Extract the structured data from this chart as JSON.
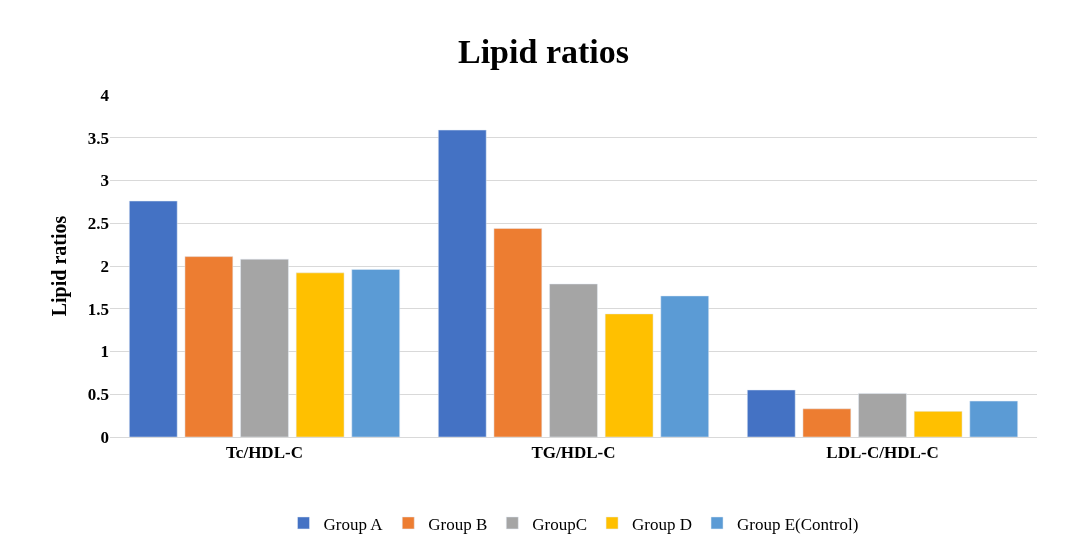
{
  "chart_data": {
    "type": "bar",
    "title": "Lipid ratios",
    "ylabel": "Lipid ratios",
    "categories": [
      "Tc/HDL-C",
      "TG/HDL-C",
      "LDL-C/HDL-C"
    ],
    "series": [
      {
        "name": "Group A",
        "color": "#4472c4",
        "values": [
          2.76,
          3.59,
          0.55
        ]
      },
      {
        "name": "Group B",
        "color": "#ed7d31",
        "values": [
          2.11,
          2.44,
          0.33
        ]
      },
      {
        "name": "GroupC",
        "color": "#a5a5a5",
        "values": [
          2.08,
          1.79,
          0.51
        ]
      },
      {
        "name": "Group D",
        "color": "#ffc000",
        "values": [
          1.92,
          1.44,
          0.3
        ]
      },
      {
        "name": "Group E(Control)",
        "color": "#5b9bd5",
        "values": [
          1.96,
          1.65,
          0.42
        ]
      }
    ],
    "ylim": [
      0,
      4
    ],
    "yticks": [
      0,
      0.5,
      1,
      1.5,
      2,
      2.5,
      3,
      3.5,
      4
    ],
    "grid": "y",
    "legend": "bottom"
  }
}
